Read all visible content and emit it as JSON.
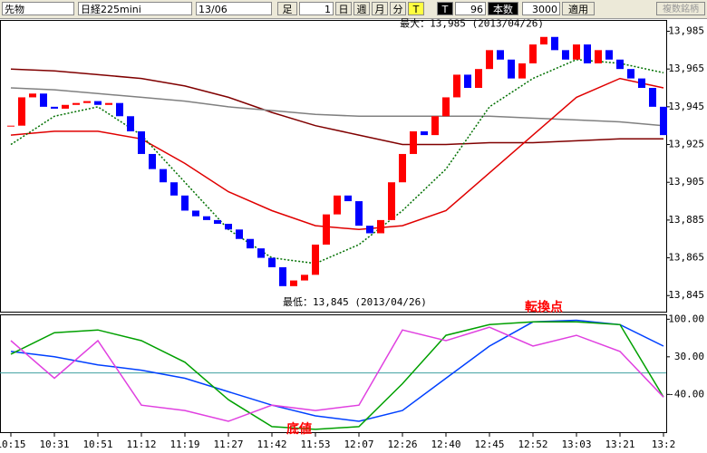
{
  "toolbar": {
    "market": "先物",
    "symbol": "日経225mini",
    "month": "13/06",
    "foot": "足",
    "minutes": "1",
    "day": "日",
    "week": "週",
    "month_btn": "月",
    "minute_btn": "分",
    "t1": "T",
    "t2": "T",
    "count": "96",
    "count_label": "本数",
    "max_count": "3000",
    "apply": "適用",
    "multi": "複数銘柄"
  },
  "chart_data": [
    {
      "type": "candlestick",
      "xlim": [
        -1,
        60.25
      ],
      "ylim": [
        13836,
        13991
      ],
      "yticks": [
        {
          "value": 13985,
          "label": "13,985"
        },
        {
          "value": 13965,
          "label": "13,965"
        },
        {
          "value": 13945,
          "label": "13,945"
        },
        {
          "value": 13925,
          "label": "13,925"
        },
        {
          "value": 13905,
          "label": "13,905"
        },
        {
          "value": 13885,
          "label": "13,885"
        },
        {
          "value": 13865,
          "label": "13,865"
        },
        {
          "value": 13845,
          "label": "13,845"
        }
      ],
      "up_color": "#ff0000",
      "down_color": "#0000ff",
      "values": [
        13935,
        13950,
        13952,
        13945,
        13944,
        13946,
        13947,
        13948,
        13946,
        13947,
        13940,
        13932,
        13920,
        13912,
        13905,
        13898,
        13890,
        13887,
        13885,
        13883,
        13880,
        13875,
        13870,
        13865,
        13860,
        13850,
        13853,
        13856,
        13872,
        13888,
        13898,
        13895,
        13882,
        13878,
        13885,
        13905,
        13920,
        13932,
        13930,
        13940,
        13950,
        13962,
        13955,
        13965,
        13975,
        13970,
        13960,
        13968,
        13978,
        13982,
        13975,
        13970,
        13978,
        13968,
        13975,
        13970,
        13965,
        13960,
        13955,
        13945,
        13930
      ],
      "series": [
        {
          "color": "#800000",
          "dash": false,
          "x": [
            0,
            4,
            8,
            12,
            16,
            20,
            24,
            28,
            32,
            36,
            40,
            44,
            48,
            52,
            56,
            60
          ],
          "values": [
            13965,
            13964,
            13962,
            13960,
            13956,
            13950,
            13942,
            13935,
            13930,
            13925,
            13925,
            13926,
            13926,
            13927,
            13928,
            13928
          ]
        },
        {
          "color": "#808080",
          "dash": false,
          "x": [
            0,
            4,
            8,
            12,
            16,
            20,
            24,
            28,
            32,
            36,
            40,
            44,
            48,
            52,
            56,
            60
          ],
          "values": [
            13955,
            13954,
            13952,
            13950,
            13948,
            13945,
            13943,
            13941,
            13940,
            13940,
            13940,
            13940,
            13939,
            13938,
            13937,
            13935
          ]
        },
        {
          "color": "#e00000",
          "dash": false,
          "x": [
            0,
            4,
            8,
            12,
            16,
            20,
            24,
            28,
            32,
            36,
            40,
            44,
            48,
            52,
            56,
            60
          ],
          "values": [
            13930,
            13932,
            13932,
            13928,
            13915,
            13900,
            13890,
            13882,
            13880,
            13882,
            13890,
            13910,
            13930,
            13950,
            13960,
            13955
          ]
        },
        {
          "color": "#007000",
          "dash": true,
          "x": [
            0,
            4,
            8,
            12,
            16,
            20,
            24,
            28,
            32,
            36,
            40,
            44,
            48,
            52,
            56,
            60
          ],
          "values": [
            13925,
            13940,
            13945,
            13930,
            13905,
            13880,
            13865,
            13862,
            13872,
            13890,
            13912,
            13945,
            13960,
            13970,
            13968,
            13963
          ]
        }
      ],
      "annotations": [
        {
          "text": "最大：13,985 (2013/04/26)",
          "x": 49,
          "y": 13985
        },
        {
          "text": "最低：13,845 (2013/04/26)",
          "x": 25,
          "y": 13845
        }
      ]
    },
    {
      "type": "line",
      "xlim": [
        -1,
        60.25
      ],
      "ylim": [
        -112,
        109
      ],
      "yticks": [
        {
          "value": 100,
          "label": "100.00"
        },
        {
          "value": 30,
          "label": "30.00"
        },
        {
          "value": -40,
          "label": "-40.00"
        }
      ],
      "hline": 0,
      "xticks": [
        {
          "value": 0,
          "label": "10:15"
        },
        {
          "value": 4,
          "label": "10:31"
        },
        {
          "value": 8,
          "label": "10:51"
        },
        {
          "value": 12,
          "label": "11:12"
        },
        {
          "value": 16,
          "label": "11:19"
        },
        {
          "value": 20,
          "label": "11:27"
        },
        {
          "value": 24,
          "label": "11:42"
        },
        {
          "value": 28,
          "label": "11:53"
        },
        {
          "value": 32,
          "label": "12:07"
        },
        {
          "value": 36,
          "label": "12:26"
        },
        {
          "value": 40,
          "label": "12:40"
        },
        {
          "value": 44,
          "label": "12:45"
        },
        {
          "value": 48,
          "label": "12:52"
        },
        {
          "value": 52,
          "label": "13:03"
        },
        {
          "value": 56,
          "label": "13:21"
        },
        {
          "value": 60,
          "label": "13:2"
        }
      ],
      "series": [
        {
          "color": "#0040ff",
          "x": [
            0,
            4,
            8,
            12,
            16,
            20,
            24,
            28,
            32,
            36,
            40,
            44,
            48,
            52,
            56,
            60
          ],
          "values": [
            40,
            30,
            15,
            5,
            -10,
            -35,
            -60,
            -80,
            -90,
            -70,
            -10,
            50,
            95,
            98,
            90,
            50
          ]
        },
        {
          "color": "#00a000",
          "x": [
            0,
            4,
            8,
            12,
            16,
            20,
            24,
            28,
            32,
            36,
            40,
            44,
            48,
            52,
            56,
            60
          ],
          "values": [
            35,
            75,
            80,
            60,
            20,
            -50,
            -100,
            -105,
            -100,
            -20,
            70,
            90,
            95,
            95,
            90,
            -45
          ]
        },
        {
          "color": "#e040e0",
          "x": [
            0,
            4,
            8,
            12,
            16,
            20,
            24,
            28,
            32,
            36,
            40,
            44,
            48,
            52,
            56,
            60
          ],
          "values": [
            60,
            -10,
            60,
            -60,
            -70,
            -90,
            -60,
            -70,
            -60,
            80,
            60,
            85,
            50,
            70,
            40,
            -45
          ]
        }
      ],
      "annotations": [
        {
          "text": "転換点",
          "x": 49,
          "y": 122
        },
        {
          "text": "底値",
          "x": 26.5,
          "y": -105
        }
      ]
    }
  ]
}
